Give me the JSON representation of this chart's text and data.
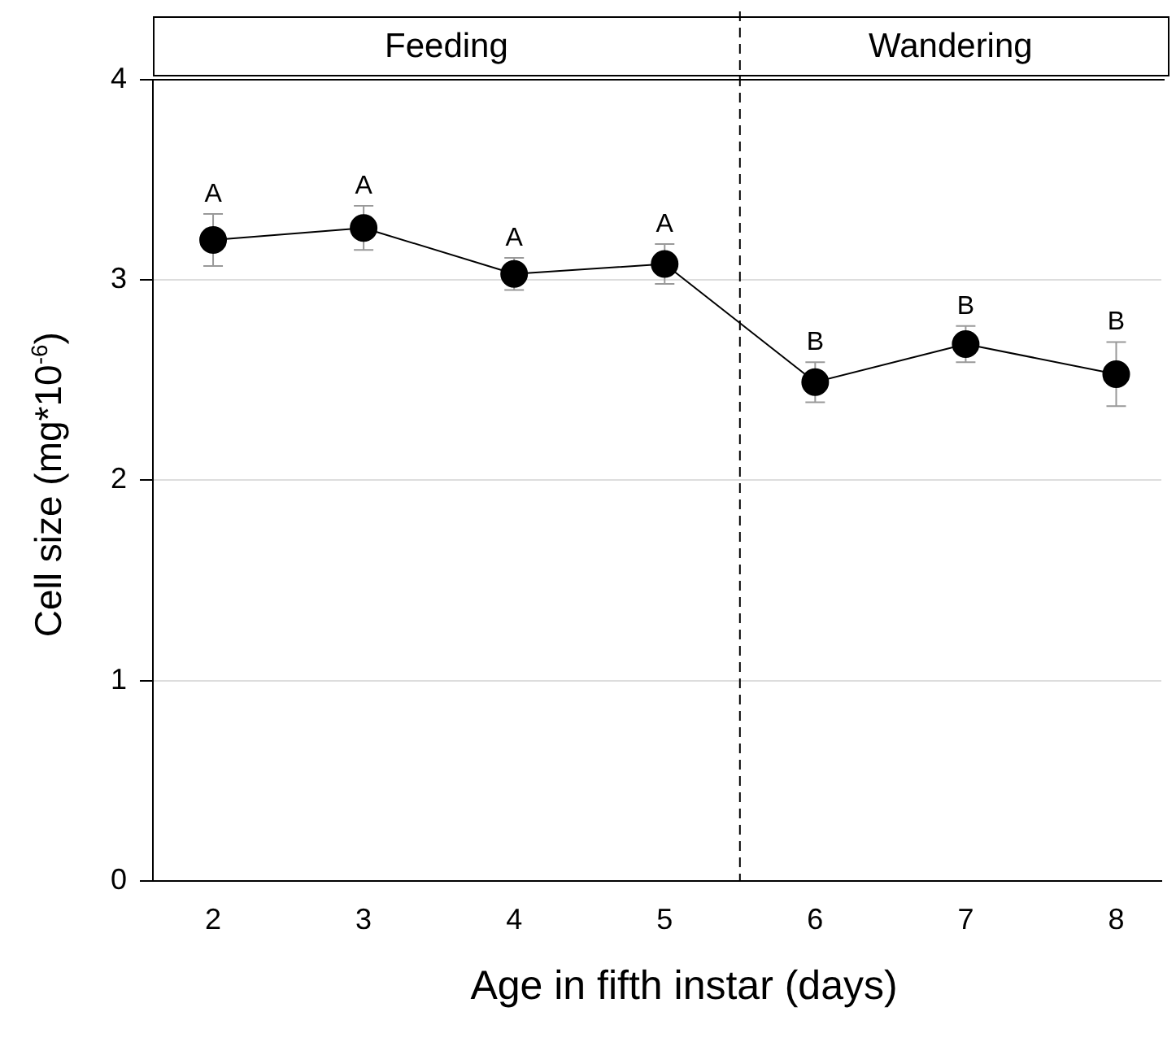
{
  "chart_data": {
    "type": "line",
    "xlabel": "Age in fifth instar (days)",
    "ylabel": "Cell size (mg*10$^{-6}$)",
    "x": [
      2,
      3,
      4,
      5,
      6,
      7,
      8
    ],
    "series": [
      {
        "color": "#000000",
        "values": [
          3.2,
          3.26,
          3.03,
          3.08,
          2.49,
          2.68,
          2.53
        ],
        "errors": [
          0.13,
          0.11,
          0.08,
          0.1,
          0.1,
          0.09,
          0.16
        ]
      }
    ],
    "xlim": [
      1.6,
      8.3
    ],
    "xticks": [
      2,
      3,
      4,
      5,
      6,
      7,
      8
    ],
    "ylim": [
      0,
      4
    ],
    "yticks": [
      0,
      1,
      2,
      3,
      4
    ],
    "grid": "y",
    "marker": "circle",
    "line_style": "solid",
    "ref_lines": [
      {
        "axis": "x",
        "value": 5.5,
        "line_style": "dashed",
        "color": "#000000"
      }
    ],
    "annotations": [
      "Feeding",
      "Wandering",
      {
        "text": "A",
        "x": 2,
        "y": 3.2
      },
      {
        "text": "A",
        "x": 3,
        "y": 3.26
      },
      {
        "text": "A",
        "x": 4,
        "y": 3.03
      },
      {
        "text": "A",
        "x": 5,
        "y": 3.08
      },
      {
        "text": "B",
        "x": 6,
        "y": 2.49
      },
      {
        "text": "B",
        "x": 7,
        "y": 2.68
      },
      {
        "text": "B",
        "x": 8,
        "y": 2.53
      }
    ]
  }
}
